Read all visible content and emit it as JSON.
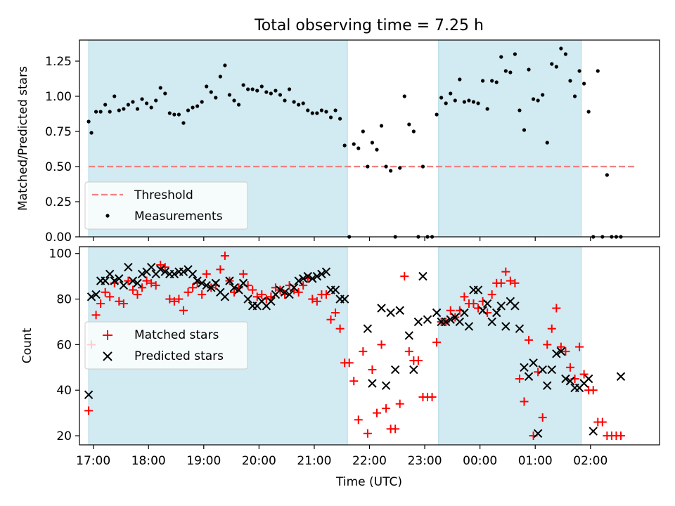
{
  "title": "Total observing time = 7.25 h",
  "colors": {
    "span": "#add8e6",
    "threshold": "#f08080",
    "measurement": "#000000",
    "matched": "#ff0000",
    "predicted": "#000000"
  },
  "chart_data": [
    {
      "type": "scatter",
      "title": "Total observing time = 7.25 h",
      "xlabel": "",
      "ylabel": "Matched/Predicted stars",
      "xlim": [
        "16:45",
        "03:15"
      ],
      "ylim": [
        0,
        1.4
      ],
      "yticks": [
        "0.00",
        "0.25",
        "0.50",
        "0.75",
        "1.00",
        "1.25"
      ],
      "x_ticks": [
        "17:00",
        "18:00",
        "19:00",
        "20:00",
        "21:00",
        "22:00",
        "23:00",
        "00:00",
        "01:00",
        "02:00"
      ],
      "shaded_spans": [
        [
          "16:55",
          "21:36"
        ],
        [
          "23:15",
          "01:50"
        ]
      ],
      "legend_position": "lower-left",
      "legend": {
        "threshold": "Threshold",
        "measurements": "Measurements"
      },
      "threshold": 0.5,
      "series": [
        {
          "name": "Measurements",
          "x": [
            "16:55",
            "16:58",
            "17:03",
            "17:08",
            "17:13",
            "17:18",
            "17:23",
            "17:28",
            "17:33",
            "17:38",
            "17:43",
            "17:48",
            "17:53",
            "17:58",
            "18:03",
            "18:08",
            "18:13",
            "18:18",
            "18:23",
            "18:28",
            "18:33",
            "18:38",
            "18:43",
            "18:48",
            "18:53",
            "18:58",
            "19:03",
            "19:08",
            "19:13",
            "19:18",
            "19:23",
            "19:28",
            "19:33",
            "19:38",
            "19:43",
            "19:48",
            "19:53",
            "19:58",
            "20:03",
            "20:08",
            "20:13",
            "20:18",
            "20:23",
            "20:28",
            "20:33",
            "20:38",
            "20:43",
            "20:48",
            "20:53",
            "20:58",
            "21:03",
            "21:08",
            "21:13",
            "21:18",
            "21:23",
            "21:28",
            "21:33",
            "21:38",
            "21:43",
            "21:48",
            "21:53",
            "21:58",
            "22:03",
            "22:08",
            "22:13",
            "22:18",
            "22:23",
            "22:28",
            "22:33",
            "22:38",
            "22:43",
            "22:48",
            "22:53",
            "22:58",
            "23:03",
            "23:08",
            "23:13",
            "23:18",
            "23:23",
            "23:28",
            "23:33",
            "23:38",
            "23:43",
            "23:48",
            "23:53",
            "23:58",
            "00:03",
            "00:08",
            "00:13",
            "00:18",
            "00:23",
            "00:28",
            "00:33",
            "00:38",
            "00:43",
            "00:48",
            "00:53",
            "00:58",
            "01:03",
            "01:08",
            "01:13",
            "01:18",
            "01:23",
            "01:28",
            "01:33",
            "01:38",
            "01:43",
            "01:48",
            "01:53",
            "01:58",
            "02:03",
            "02:08",
            "02:13",
            "02:18",
            "02:23",
            "02:28",
            "02:33"
          ],
          "y": [
            0.82,
            0.74,
            0.89,
            0.89,
            0.94,
            0.89,
            1.0,
            0.9,
            0.91,
            0.94,
            0.96,
            0.91,
            0.98,
            0.95,
            0.92,
            0.97,
            1.06,
            1.02,
            0.88,
            0.87,
            0.87,
            0.81,
            0.9,
            0.92,
            0.93,
            0.96,
            1.07,
            1.03,
            0.99,
            1.14,
            1.22,
            1.01,
            0.97,
            0.94,
            1.08,
            1.05,
            1.05,
            1.04,
            1.07,
            1.03,
            1.02,
            1.04,
            1.01,
            0.97,
            1.05,
            0.96,
            0.94,
            0.95,
            0.9,
            0.88,
            0.88,
            0.9,
            0.89,
            0.85,
            0.9,
            0.84,
            0.65,
            0.0,
            0.66,
            0.63,
            0.75,
            0.5,
            0.67,
            0.62,
            0.79,
            0.5,
            0.47,
            0.0,
            0.49,
            1.0,
            0.8,
            0.75,
            0.0,
            0.5,
            0.0,
            0.0,
            0.87,
            0.99,
            0.95,
            1.02,
            0.97,
            1.12,
            0.96,
            0.97,
            0.96,
            0.95,
            1.11,
            0.91,
            1.11,
            1.1,
            1.28,
            1.18,
            1.17,
            1.3,
            0.9,
            0.76,
            1.19,
            0.98,
            0.97,
            1.01,
            0.67,
            1.23,
            1.21,
            1.34,
            1.3,
            1.11,
            1.0,
            1.18,
            1.09,
            0.89,
            0.0,
            1.18,
            0.0,
            0.44,
            0.0,
            0.0,
            0.0
          ]
        },
        {
          "name": "Threshold",
          "x": [
            "16:55",
            "02:50"
          ],
          "y": [
            0.5,
            0.5
          ]
        }
      ]
    },
    {
      "type": "scatter",
      "title": "",
      "xlabel": "Time (UTC)",
      "ylabel": "Count",
      "xlim": [
        "16:45",
        "03:15"
      ],
      "ylim": [
        16,
        103
      ],
      "yticks": [
        "20",
        "40",
        "60",
        "80",
        "100"
      ],
      "x_ticks": [
        "17:00",
        "18:00",
        "19:00",
        "20:00",
        "21:00",
        "22:00",
        "23:00",
        "00:00",
        "01:00",
        "02:00"
      ],
      "shaded_spans": [
        [
          "16:55",
          "21:36"
        ],
        [
          "23:15",
          "01:50"
        ]
      ],
      "legend_position": "center-left",
      "legend": {
        "matched": "Matched stars",
        "predicted": "Predicted stars"
      },
      "series": [
        {
          "name": "Matched stars",
          "x": [
            "16:55",
            "16:58",
            "17:03",
            "17:08",
            "17:13",
            "17:18",
            "17:23",
            "17:28",
            "17:33",
            "17:38",
            "17:43",
            "17:48",
            "17:53",
            "17:58",
            "18:03",
            "18:08",
            "18:13",
            "18:18",
            "18:23",
            "18:28",
            "18:33",
            "18:38",
            "18:43",
            "18:48",
            "18:53",
            "18:58",
            "19:03",
            "19:08",
            "19:13",
            "19:18",
            "19:23",
            "19:28",
            "19:33",
            "19:38",
            "19:43",
            "19:48",
            "19:53",
            "19:58",
            "20:03",
            "20:08",
            "20:13",
            "20:18",
            "20:23",
            "20:28",
            "20:33",
            "20:38",
            "20:43",
            "20:48",
            "20:53",
            "20:58",
            "21:03",
            "21:08",
            "21:13",
            "21:18",
            "21:23",
            "21:28",
            "21:33",
            "21:38",
            "21:43",
            "21:48",
            "21:53",
            "21:58",
            "22:03",
            "22:08",
            "22:13",
            "22:18",
            "22:23",
            "22:28",
            "22:33",
            "22:38",
            "22:43",
            "22:48",
            "22:53",
            "22:58",
            "23:03",
            "23:08",
            "23:13",
            "23:18",
            "23:23",
            "23:28",
            "23:33",
            "23:38",
            "23:43",
            "23:48",
            "23:53",
            "23:58",
            "00:03",
            "00:08",
            "00:13",
            "00:18",
            "00:23",
            "00:28",
            "00:33",
            "00:38",
            "00:43",
            "00:48",
            "00:53",
            "00:58",
            "01:03",
            "01:08",
            "01:13",
            "01:18",
            "01:23",
            "01:28",
            "01:33",
            "01:38",
            "01:43",
            "01:48",
            "01:53",
            "01:58",
            "02:03",
            "02:08",
            "02:13",
            "02:18",
            "02:23",
            "02:28",
            "02:33"
          ],
          "y": [
            31,
            60,
            73,
            78,
            83,
            81,
            87,
            79,
            78,
            88,
            84,
            82,
            85,
            88,
            87,
            86,
            95,
            94,
            80,
            79,
            80,
            75,
            83,
            85,
            87,
            82,
            91,
            85,
            86,
            93,
            99,
            88,
            83,
            85,
            91,
            86,
            84,
            81,
            82,
            80,
            81,
            85,
            84,
            82,
            86,
            84,
            83,
            86,
            89,
            80,
            79,
            82,
            82,
            71,
            74,
            67,
            52,
            52,
            44,
            27,
            57,
            21,
            49,
            30,
            60,
            32,
            23,
            23,
            34,
            90,
            57,
            53,
            53,
            37,
            37,
            37,
            61,
            70,
            70,
            75,
            72,
            75,
            81,
            78,
            78,
            76,
            79,
            74,
            82,
            87,
            87,
            92,
            88,
            87,
            45,
            35,
            62,
            20,
            48,
            28,
            60,
            67,
            76,
            59,
            57,
            50,
            45,
            59,
            47,
            40,
            40,
            26,
            26,
            20,
            20,
            20,
            20
          ]
        },
        {
          "name": "Predicted stars",
          "x": [
            "16:55",
            "16:58",
            "17:03",
            "17:08",
            "17:13",
            "17:18",
            "17:23",
            "17:28",
            "17:33",
            "17:38",
            "17:43",
            "17:48",
            "17:53",
            "17:58",
            "18:03",
            "18:08",
            "18:13",
            "18:18",
            "18:23",
            "18:28",
            "18:33",
            "18:38",
            "18:43",
            "18:48",
            "18:53",
            "18:58",
            "19:03",
            "19:08",
            "19:13",
            "19:18",
            "19:23",
            "19:28",
            "19:33",
            "19:38",
            "19:43",
            "19:48",
            "19:53",
            "19:58",
            "20:03",
            "20:08",
            "20:13",
            "20:18",
            "20:23",
            "20:28",
            "20:33",
            "20:38",
            "20:43",
            "20:48",
            "20:53",
            "20:58",
            "21:03",
            "21:08",
            "21:13",
            "21:18",
            "21:23",
            "21:28",
            "21:33",
            "21:58",
            "22:03",
            "22:13",
            "22:18",
            "22:23",
            "22:28",
            "22:33",
            "22:43",
            "22:48",
            "22:53",
            "22:58",
            "23:03",
            "23:13",
            "23:18",
            "23:23",
            "23:28",
            "23:33",
            "23:38",
            "23:43",
            "23:48",
            "23:53",
            "23:58",
            "00:03",
            "00:08",
            "00:13",
            "00:18",
            "00:23",
            "00:28",
            "00:33",
            "00:38",
            "00:43",
            "00:48",
            "00:53",
            "00:58",
            "01:03",
            "01:08",
            "01:13",
            "01:18",
            "01:23",
            "01:28",
            "01:33",
            "01:38",
            "01:43",
            "01:48",
            "01:53",
            "01:58",
            "02:03",
            "02:33"
          ],
          "y": [
            38,
            81,
            82,
            88,
            88,
            91,
            88,
            89,
            86,
            94,
            88,
            87,
            91,
            92,
            94,
            91,
            93,
            92,
            91,
            91,
            92,
            92,
            93,
            91,
            88,
            87,
            86,
            85,
            87,
            83,
            81,
            88,
            85,
            84,
            87,
            80,
            77,
            77,
            79,
            77,
            79,
            82,
            84,
            83,
            82,
            85,
            88,
            89,
            90,
            89,
            90,
            91,
            92,
            84,
            84,
            80,
            80,
            67,
            43,
            76,
            42,
            74,
            49,
            75,
            64,
            49,
            70,
            90,
            71,
            74,
            70,
            70,
            71,
            72,
            70,
            74,
            68,
            84,
            84,
            75,
            78,
            70,
            74,
            77,
            68,
            79,
            77,
            67,
            50,
            46,
            52,
            21,
            49,
            42,
            49,
            56,
            57,
            45,
            44,
            41,
            41,
            43,
            45,
            22,
            46
          ]
        }
      ]
    }
  ]
}
